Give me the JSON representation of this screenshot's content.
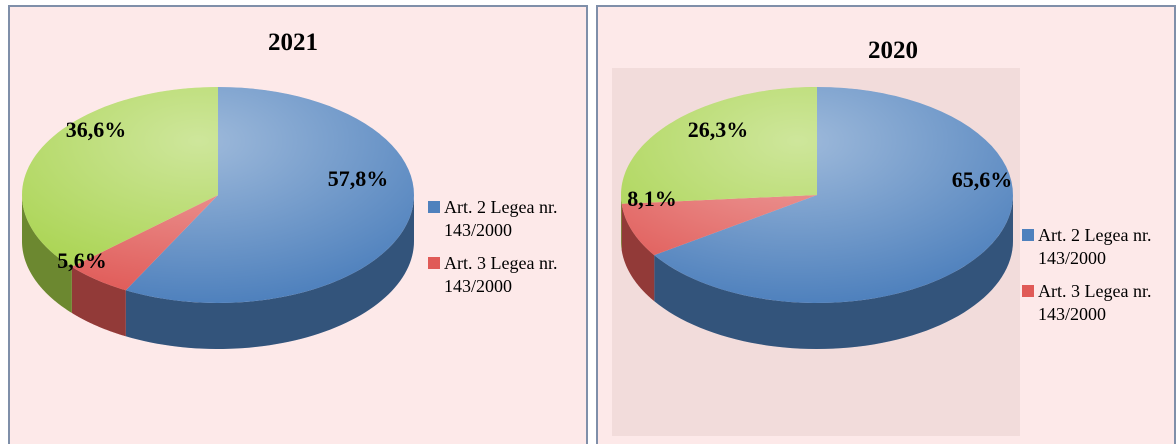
{
  "chart_data": [
    {
      "type": "pie",
      "title": "2021",
      "categories": [
        "Art. 2 Legea nr. 143/2000",
        "Art. 3 Legea nr. 143/2000",
        null
      ],
      "values": [
        57.8,
        5.6,
        36.6
      ],
      "value_labels": [
        "57,8%",
        "5,6%",
        "36,6%"
      ],
      "colors": [
        "#4f81bd",
        "#e05a57",
        "#a6d24a"
      ]
    },
    {
      "type": "pie",
      "title": "2020",
      "categories": [
        "Art. 2 Legea nr. 143/2000",
        "Art. 3 Legea nr. 143/2000",
        null
      ],
      "values": [
        65.6,
        8.1,
        26.3
      ],
      "value_labels": [
        "65,6%",
        "8,1%",
        "26,3%"
      ],
      "colors": [
        "#4f81bd",
        "#e05a57",
        "#a6d24a"
      ]
    }
  ]
}
